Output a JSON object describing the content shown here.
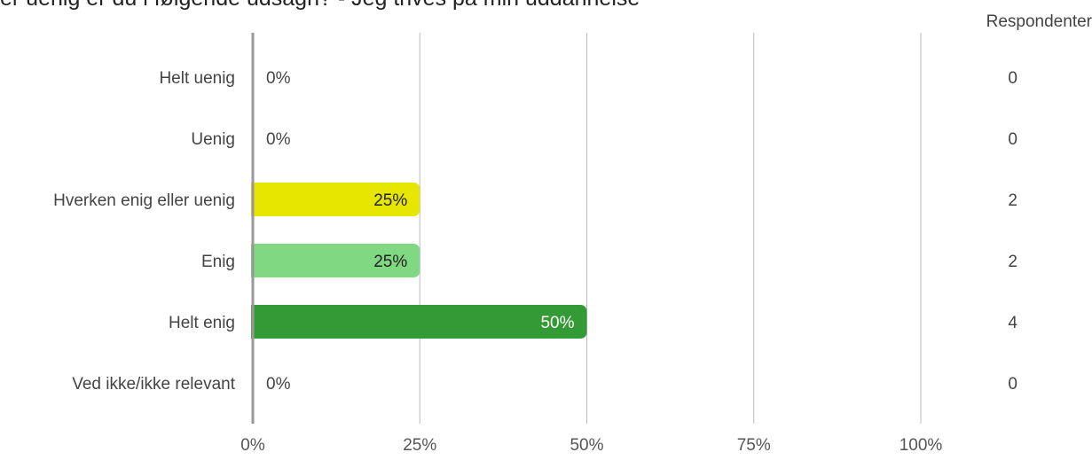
{
  "title_fragment": "er uenig er du i følgende udsagn? - Jeg trives på min uddannelse",
  "respondents_header": "Respondenter",
  "chart_data": {
    "type": "bar",
    "orientation": "horizontal",
    "categories": [
      "Helt uenig",
      "Uenig",
      "Hverken enig eller uenig",
      "Enig",
      "Helt enig",
      "Ved ikke/ikke relevant"
    ],
    "values": [
      0,
      0,
      25,
      25,
      50,
      0
    ],
    "value_labels": [
      "0%",
      "0%",
      "25%",
      "25%",
      "50%",
      "0%"
    ],
    "respondents": [
      0,
      0,
      2,
      2,
      4,
      0
    ],
    "colors": [
      "#cccccc",
      "#cccccc",
      "#e6e600",
      "#81d882",
      "#339a35",
      "#cccccc"
    ],
    "label_colors": [
      "#444444",
      "#444444",
      "#222222",
      "#222222",
      "#ffffff",
      "#444444"
    ],
    "xlim": [
      0,
      100
    ],
    "x_ticks": [
      "0%",
      "25%",
      "50%",
      "75%",
      "100%"
    ],
    "grid": true,
    "xlabel": "",
    "ylabel": ""
  }
}
